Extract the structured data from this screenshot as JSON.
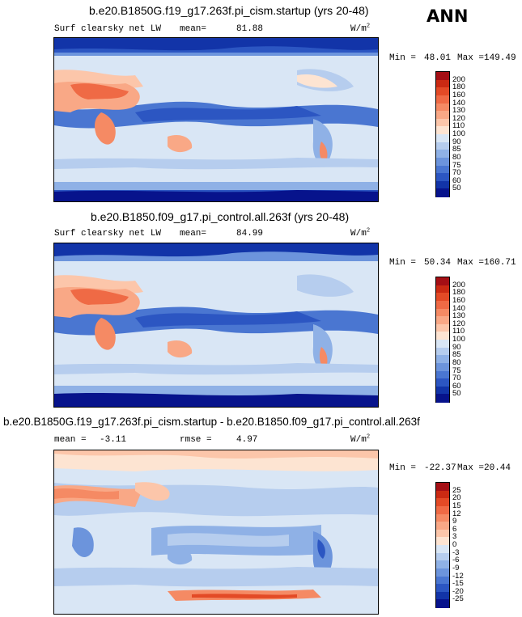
{
  "season": "ANN",
  "panels": [
    {
      "title": "b.e20.B1850G.f19_g17.263f.pi_cism.startup (yrs 20-48)",
      "variable": "Surf clearsky net LW",
      "stat1_label": "mean=",
      "stat1_value": "81.88",
      "units_main": "W/m",
      "units_exp": "2",
      "min_label": "Min =",
      "min_value": "48.01",
      "max_label": "Max =",
      "max_value": "149.49",
      "levels": [
        "200",
        "180",
        "160",
        "140",
        "130",
        "120",
        "110",
        "100",
        "90",
        "85",
        "80",
        "75",
        "70",
        "60",
        "50"
      ],
      "colors": [
        "#a50f15",
        "#cb2a13",
        "#e34a26",
        "#ef6a45",
        "#f58a64",
        "#f9a886",
        "#fcc6aa",
        "#fde4d2",
        "#d9e6f5",
        "#b6cdee",
        "#8fb1e6",
        "#6c94dc",
        "#4a76d1",
        "#2c56c2",
        "#1234a8",
        "#07138c"
      ]
    },
    {
      "title": "b.e20.B1850.f09_g17.pi_control.all.263f (yrs 20-48)",
      "variable": "Surf clearsky net LW",
      "stat1_label": "mean=",
      "stat1_value": "84.99",
      "units_main": "W/m",
      "units_exp": "2",
      "min_label": "Min =",
      "min_value": "50.34",
      "max_label": "Max =",
      "max_value": "160.71",
      "levels": [
        "200",
        "180",
        "160",
        "140",
        "130",
        "120",
        "110",
        "100",
        "90",
        "85",
        "80",
        "75",
        "70",
        "60",
        "50"
      ],
      "colors": [
        "#a50f15",
        "#cb2a13",
        "#e34a26",
        "#ef6a45",
        "#f58a64",
        "#f9a886",
        "#fcc6aa",
        "#fde4d2",
        "#d9e6f5",
        "#b6cdee",
        "#8fb1e6",
        "#6c94dc",
        "#4a76d1",
        "#2c56c2",
        "#1234a8",
        "#07138c"
      ]
    },
    {
      "title": "b.e20.B1850G.f19_g17.263f.pi_cism.startup - b.e20.B1850.f09_g17.pi_control.all.263f",
      "stat1_label": "mean =",
      "stat1_value": "-3.11",
      "stat2_label": "rmse =",
      "stat2_value": "4.97",
      "units_main": "W/m",
      "units_exp": "2",
      "min_label": "Min =",
      "min_value": "-22.37",
      "max_label": "Max =",
      "max_value": "20.44",
      "levels": [
        "25",
        "20",
        "15",
        "12",
        "9",
        "6",
        "3",
        "0",
        "-3",
        "-6",
        "-9",
        "-12",
        "-15",
        "-20",
        "-25"
      ],
      "colors": [
        "#a50f15",
        "#cb2a13",
        "#e34a26",
        "#ef6a45",
        "#f58a64",
        "#f9a886",
        "#fcc6aa",
        "#fde4d2",
        "#d9e6f5",
        "#b6cdee",
        "#8fb1e6",
        "#6c94dc",
        "#4a76d1",
        "#2c56c2",
        "#1234a8",
        "#07138c"
      ]
    }
  ]
}
